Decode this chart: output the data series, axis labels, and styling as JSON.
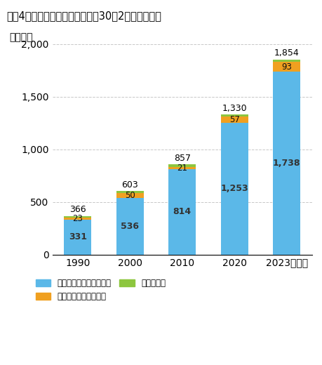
{
  "title": "図袆4　家計負債の種類別残高（30代2人以上世帯）",
  "ylabel": "（万円）",
  "year_suffix": "（年）",
  "categories": [
    "1990",
    "2000",
    "2010",
    "2020",
    "2023"
  ],
  "housing_land": [
    331,
    536,
    814,
    1253,
    1738
  ],
  "other_debt": [
    23,
    50,
    21,
    57,
    93
  ],
  "installment": [
    12,
    17,
    22,
    20,
    23
  ],
  "totals": [
    366,
    603,
    857,
    1330,
    1854
  ],
  "color_housing": "#5BB8E8",
  "color_other": "#F0A020",
  "color_installment": "#8DC63F",
  "ylim": [
    0,
    2000
  ],
  "yticks": [
    0,
    500,
    1000,
    1500,
    2000
  ],
  "legend_labels": [
    "住宅・土地のための負債",
    "住宅・土地以外の負債",
    "月賦・年賦"
  ],
  "background_color": "#ffffff",
  "grid_color": "#c8c8c8"
}
